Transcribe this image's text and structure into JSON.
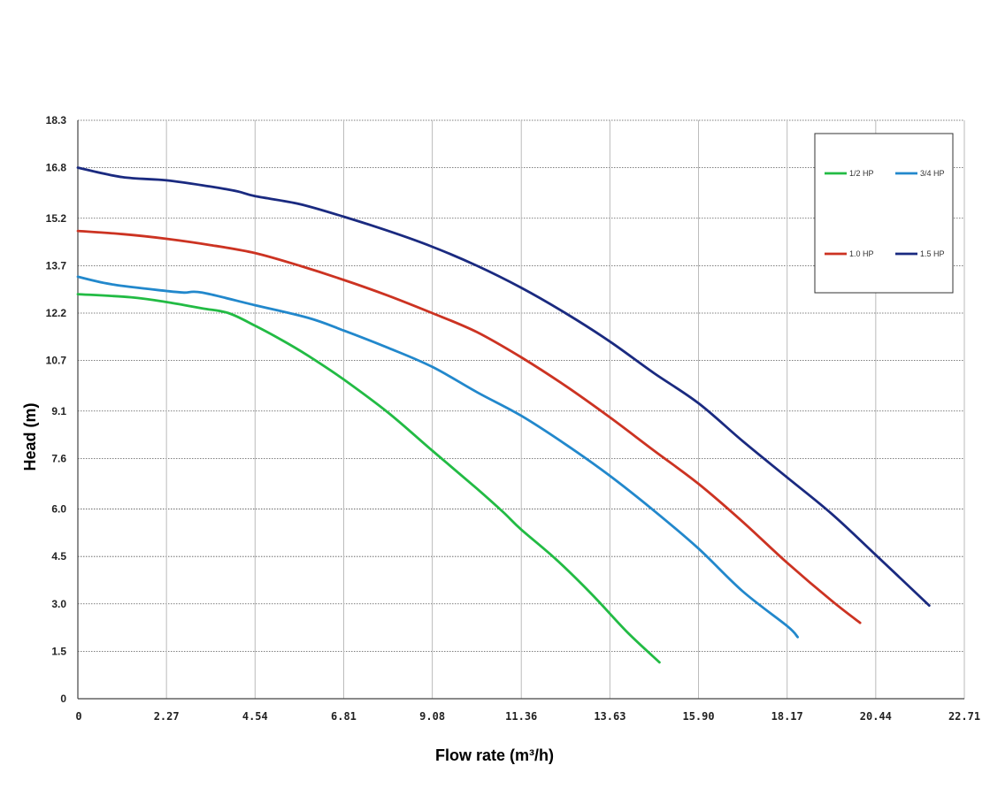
{
  "chart_data": {
    "type": "line",
    "xlabel": "Flow rate (m³/h)",
    "ylabel": "Head (m)",
    "xlim": [
      0,
      22.71
    ],
    "ylim": [
      0,
      18.3
    ],
    "x_ticks": [
      "0",
      "2.27",
      "4.54",
      "6.81",
      "9.08",
      "11.36",
      "13.63",
      "15.90",
      "18.17",
      "20.44",
      "22.71"
    ],
    "y_ticks": [
      "0",
      "1.5",
      "3.0",
      "4.5",
      "6.0",
      "7.6",
      "9.1",
      "10.7",
      "12.2",
      "13.7",
      "15.2",
      "16.8",
      "18.3"
    ],
    "x_tick_values": [
      0,
      2.27,
      4.54,
      6.81,
      9.08,
      11.36,
      13.63,
      15.9,
      18.17,
      20.44,
      22.71
    ],
    "y_tick_values": [
      0,
      1.5,
      3.0,
      4.5,
      6.0,
      7.6,
      9.1,
      10.7,
      12.2,
      13.7,
      15.2,
      16.8,
      18.3
    ],
    "grid": true,
    "legend_position": "top-right",
    "series": [
      {
        "name": "1/2 HP",
        "color": "#22bb44",
        "x": [
          0,
          1.36,
          2.27,
          3.18,
          3.86,
          4.54,
          5.22,
          5.9,
          6.81,
          7.95,
          9.08,
          10.22,
          10.9,
          11.36,
          12.26,
          13.17,
          14.08,
          14.9
        ],
        "y": [
          12.8,
          12.7,
          12.55,
          12.35,
          12.2,
          11.8,
          11.35,
          10.85,
          10.1,
          9.05,
          7.85,
          6.65,
          5.9,
          5.35,
          4.4,
          3.3,
          2.1,
          1.15
        ]
      },
      {
        "name": "3/4 HP",
        "color": "#2288cc",
        "x": [
          0,
          0.91,
          2.27,
          2.72,
          3.18,
          4.54,
          5.9,
          6.81,
          7.95,
          9.08,
          10.22,
          11.36,
          12.49,
          13.63,
          14.76,
          15.9,
          17.03,
          18.17,
          18.44
        ],
        "y": [
          13.35,
          13.1,
          12.9,
          12.85,
          12.85,
          12.45,
          12.05,
          11.65,
          11.1,
          10.5,
          9.7,
          8.95,
          8.05,
          7.05,
          5.95,
          4.75,
          3.4,
          2.3,
          1.95
        ]
      },
      {
        "name": "1.0 HP",
        "color": "#cc3322",
        "x": [
          0,
          1.14,
          2.27,
          3.41,
          4.54,
          5.68,
          6.81,
          7.95,
          9.08,
          10.22,
          11.36,
          12.49,
          13.63,
          14.76,
          15.9,
          17.03,
          18.17,
          19.31,
          20.04
        ],
        "y": [
          14.8,
          14.7,
          14.55,
          14.35,
          14.1,
          13.7,
          13.25,
          12.75,
          12.2,
          11.6,
          10.8,
          9.9,
          8.9,
          7.85,
          6.8,
          5.6,
          4.3,
          3.1,
          2.4
        ]
      },
      {
        "name": "1.5 HP",
        "color": "#1a2a80",
        "x": [
          0,
          1.14,
          2.27,
          3.41,
          4.09,
          4.54,
          5.68,
          6.81,
          7.95,
          9.08,
          10.22,
          11.36,
          12.49,
          13.63,
          14.76,
          15.9,
          17.03,
          18.17,
          19.31,
          20.44,
          21.81
        ],
        "y": [
          16.8,
          16.5,
          16.4,
          16.2,
          16.05,
          15.9,
          15.65,
          15.25,
          14.8,
          14.3,
          13.7,
          13.0,
          12.2,
          11.3,
          10.3,
          9.35,
          8.15,
          7.0,
          5.85,
          4.55,
          2.95
        ]
      }
    ]
  }
}
